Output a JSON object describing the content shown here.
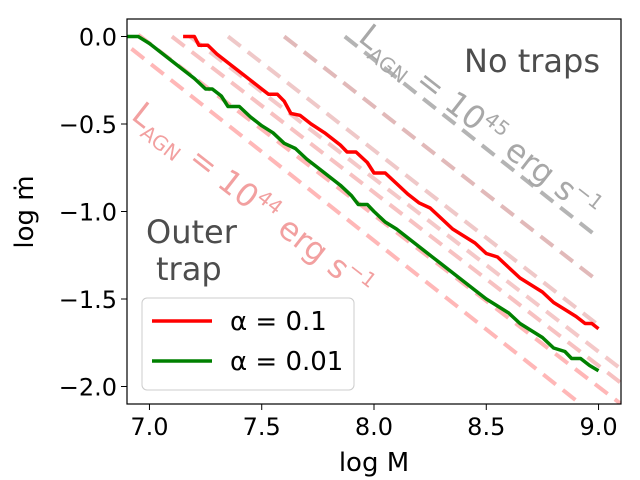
{
  "chart_data": {
    "type": "line",
    "xlabel": "log M",
    "ylabel": "log ṁ",
    "xlim": [
      6.9,
      9.1
    ],
    "ylim": [
      -2.1,
      0.1
    ],
    "x_ticks": [
      {
        "value": 7.0,
        "label": "7.0"
      },
      {
        "value": 7.5,
        "label": "7.5"
      },
      {
        "value": 8.0,
        "label": "8.0"
      },
      {
        "value": 8.5,
        "label": "8.5"
      },
      {
        "value": 9.0,
        "label": "9.0"
      }
    ],
    "y_ticks": [
      {
        "value": 0.0,
        "label": "0.0"
      },
      {
        "value": -0.5,
        "label": "−0.5"
      },
      {
        "value": -1.0,
        "label": "−1.0"
      },
      {
        "value": -1.5,
        "label": "−1.5"
      },
      {
        "value": -2.0,
        "label": "−2.0"
      }
    ],
    "series": [
      {
        "name": "α = 0.1",
        "color": "#ff0000",
        "points": [
          [
            7.15,
            0.0
          ],
          [
            7.2,
            0.0
          ],
          [
            7.22,
            -0.05
          ],
          [
            7.26,
            -0.05
          ],
          [
            7.3,
            -0.1
          ],
          [
            7.35,
            -0.15
          ],
          [
            7.4,
            -0.2
          ],
          [
            7.45,
            -0.25
          ],
          [
            7.5,
            -0.3
          ],
          [
            7.53,
            -0.33
          ],
          [
            7.57,
            -0.33
          ],
          [
            7.6,
            -0.37
          ],
          [
            7.63,
            -0.44
          ],
          [
            7.67,
            -0.45
          ],
          [
            7.72,
            -0.5
          ],
          [
            7.78,
            -0.55
          ],
          [
            7.85,
            -0.62
          ],
          [
            7.88,
            -0.66
          ],
          [
            7.92,
            -0.66
          ],
          [
            7.97,
            -0.72
          ],
          [
            8.0,
            -0.78
          ],
          [
            8.05,
            -0.78
          ],
          [
            8.1,
            -0.84
          ],
          [
            8.15,
            -0.9
          ],
          [
            8.2,
            -0.95
          ],
          [
            8.25,
            -0.98
          ],
          [
            8.3,
            -1.04
          ],
          [
            8.35,
            -1.1
          ],
          [
            8.4,
            -1.14
          ],
          [
            8.45,
            -1.18
          ],
          [
            8.5,
            -1.24
          ],
          [
            8.55,
            -1.26
          ],
          [
            8.6,
            -1.32
          ],
          [
            8.65,
            -1.38
          ],
          [
            8.7,
            -1.42
          ],
          [
            8.75,
            -1.46
          ],
          [
            8.8,
            -1.52
          ],
          [
            8.85,
            -1.56
          ],
          [
            8.9,
            -1.6
          ],
          [
            8.94,
            -1.64
          ],
          [
            8.97,
            -1.64
          ],
          [
            9.0,
            -1.67
          ]
        ]
      },
      {
        "name": "α = 0.01",
        "color": "#008000",
        "points": [
          [
            6.9,
            0.0
          ],
          [
            6.95,
            0.0
          ],
          [
            7.0,
            -0.04
          ],
          [
            7.05,
            -0.09
          ],
          [
            7.1,
            -0.14
          ],
          [
            7.15,
            -0.19
          ],
          [
            7.2,
            -0.24
          ],
          [
            7.25,
            -0.3
          ],
          [
            7.28,
            -0.3
          ],
          [
            7.32,
            -0.34
          ],
          [
            7.35,
            -0.4
          ],
          [
            7.4,
            -0.4
          ],
          [
            7.45,
            -0.46
          ],
          [
            7.5,
            -0.51
          ],
          [
            7.55,
            -0.55
          ],
          [
            7.6,
            -0.61
          ],
          [
            7.65,
            -0.64
          ],
          [
            7.7,
            -0.7
          ],
          [
            7.75,
            -0.75
          ],
          [
            7.8,
            -0.8
          ],
          [
            7.85,
            -0.85
          ],
          [
            7.9,
            -0.91
          ],
          [
            7.93,
            -0.96
          ],
          [
            7.97,
            -0.96
          ],
          [
            8.0,
            -1.0
          ],
          [
            8.05,
            -1.06
          ],
          [
            8.1,
            -1.1
          ],
          [
            8.15,
            -1.15
          ],
          [
            8.2,
            -1.2
          ],
          [
            8.25,
            -1.25
          ],
          [
            8.3,
            -1.3
          ],
          [
            8.35,
            -1.35
          ],
          [
            8.4,
            -1.4
          ],
          [
            8.45,
            -1.45
          ],
          [
            8.5,
            -1.5
          ],
          [
            8.55,
            -1.54
          ],
          [
            8.6,
            -1.58
          ],
          [
            8.65,
            -1.64
          ],
          [
            8.7,
            -1.68
          ],
          [
            8.75,
            -1.72
          ],
          [
            8.8,
            -1.78
          ],
          [
            8.85,
            -1.8
          ],
          [
            8.88,
            -1.84
          ],
          [
            8.92,
            -1.84
          ],
          [
            8.96,
            -1.88
          ],
          [
            9.0,
            -1.91
          ]
        ]
      }
    ],
    "dashed_lines": [
      {
        "color": "#ff9999",
        "opacity": 0.7,
        "from": [
          6.92,
          -0.07
        ],
        "to": [
          8.92,
          -2.1
        ]
      },
      {
        "color": "#ff9999",
        "opacity": 0.7,
        "from": [
          6.95,
          0.01
        ],
        "to": [
          9.1,
          -2.1
        ]
      },
      {
        "color": "#f4a6a6",
        "opacity": 0.7,
        "from": [
          7.1,
          0.0
        ],
        "to": [
          9.1,
          -1.98
        ]
      },
      {
        "color": "#f0b0b0",
        "opacity": 0.7,
        "from": [
          7.18,
          0.0
        ],
        "to": [
          9.1,
          -1.9
        ]
      },
      {
        "color": "#e8b0b0",
        "opacity": 0.7,
        "from": [
          7.35,
          0.0
        ],
        "to": [
          9.0,
          -1.65
        ]
      },
      {
        "color": "#d9a8a8",
        "opacity": 0.8,
        "from": [
          7.6,
          0.0
        ],
        "to": [
          9.0,
          -1.4
        ]
      },
      {
        "color": "#b0b0b0",
        "opacity": 0.95,
        "from": [
          7.87,
          0.0
        ],
        "to": [
          9.0,
          -1.15
        ]
      }
    ],
    "annotations": {
      "no_traps": "No traps",
      "outer_line1": "Outer",
      "outer_line2": "trap",
      "lagn44_prefix": "L",
      "lagn44_sub": "AGN",
      "lagn44_mid": " = 10",
      "lagn44_sup": "44",
      "lagn44_unit": " erg s",
      "lagn44_unit_sup": "−1",
      "lagn45_prefix": "L",
      "lagn45_sub": "AGN",
      "lagn45_mid": " = 10",
      "lagn45_sup": "45",
      "lagn45_unit": " erg s",
      "lagn45_unit_sup": "−1"
    },
    "legend": {
      "placement": "lower-left",
      "entries": [
        {
          "label": "α = 0.1",
          "color": "#ff0000"
        },
        {
          "label": "α = 0.01",
          "color": "#008000"
        }
      ]
    }
  }
}
